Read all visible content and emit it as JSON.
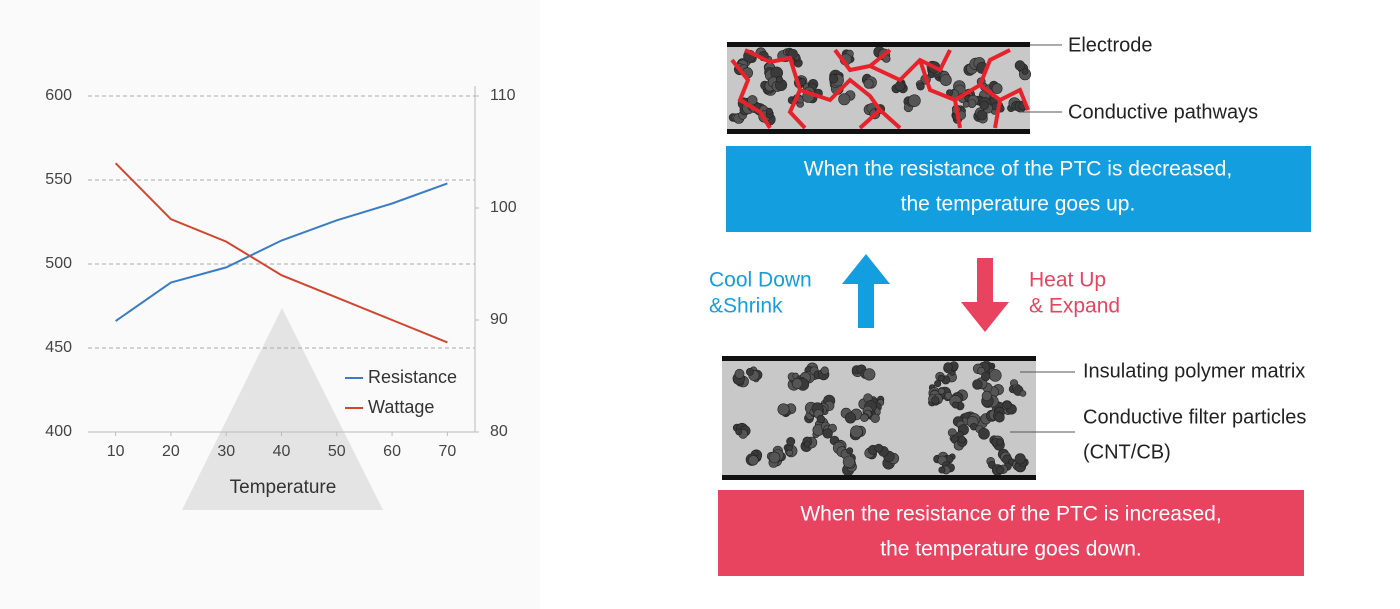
{
  "chart_data": {
    "type": "line",
    "xlabel": "Temperature",
    "x": [
      10,
      20,
      30,
      40,
      50,
      60,
      70
    ],
    "xlim": [
      5,
      75
    ],
    "xticks": [
      10,
      20,
      30,
      40,
      50,
      60,
      70
    ],
    "ylim": [
      400,
      600
    ],
    "yticks": [
      400,
      450,
      500,
      550,
      600
    ],
    "y2lim": [
      80,
      110
    ],
    "y2ticks": [
      80,
      90,
      100,
      110
    ],
    "grid": true,
    "legend": "lower right",
    "series": [
      {
        "name": "Resistance",
        "color": "#3a7dc4",
        "values": [
          466,
          489,
          498,
          514,
          526,
          536,
          548
        ]
      },
      {
        "name": "Wattage",
        "color": "#d0462f",
        "axis": "y2",
        "values": [
          104,
          99,
          97,
          94,
          92,
          90,
          88
        ]
      }
    ]
  },
  "diagram": {
    "top_labels": [
      "Electrode",
      "Conductive pathways"
    ],
    "top_caption": [
      "When the resistance of the PTC is decreased,",
      "the temperature goes up."
    ],
    "cool_label": [
      "Cool Down",
      "&Shrink"
    ],
    "heat_label": [
      "Heat Up",
      "& Expand"
    ],
    "bottom_labels": [
      "Insulating polymer matrix",
      "Conductive filter particles",
      "(CNT/CB)"
    ],
    "bottom_caption": [
      "When the resistance of the PTC is increased,",
      "the temperature goes down."
    ]
  }
}
